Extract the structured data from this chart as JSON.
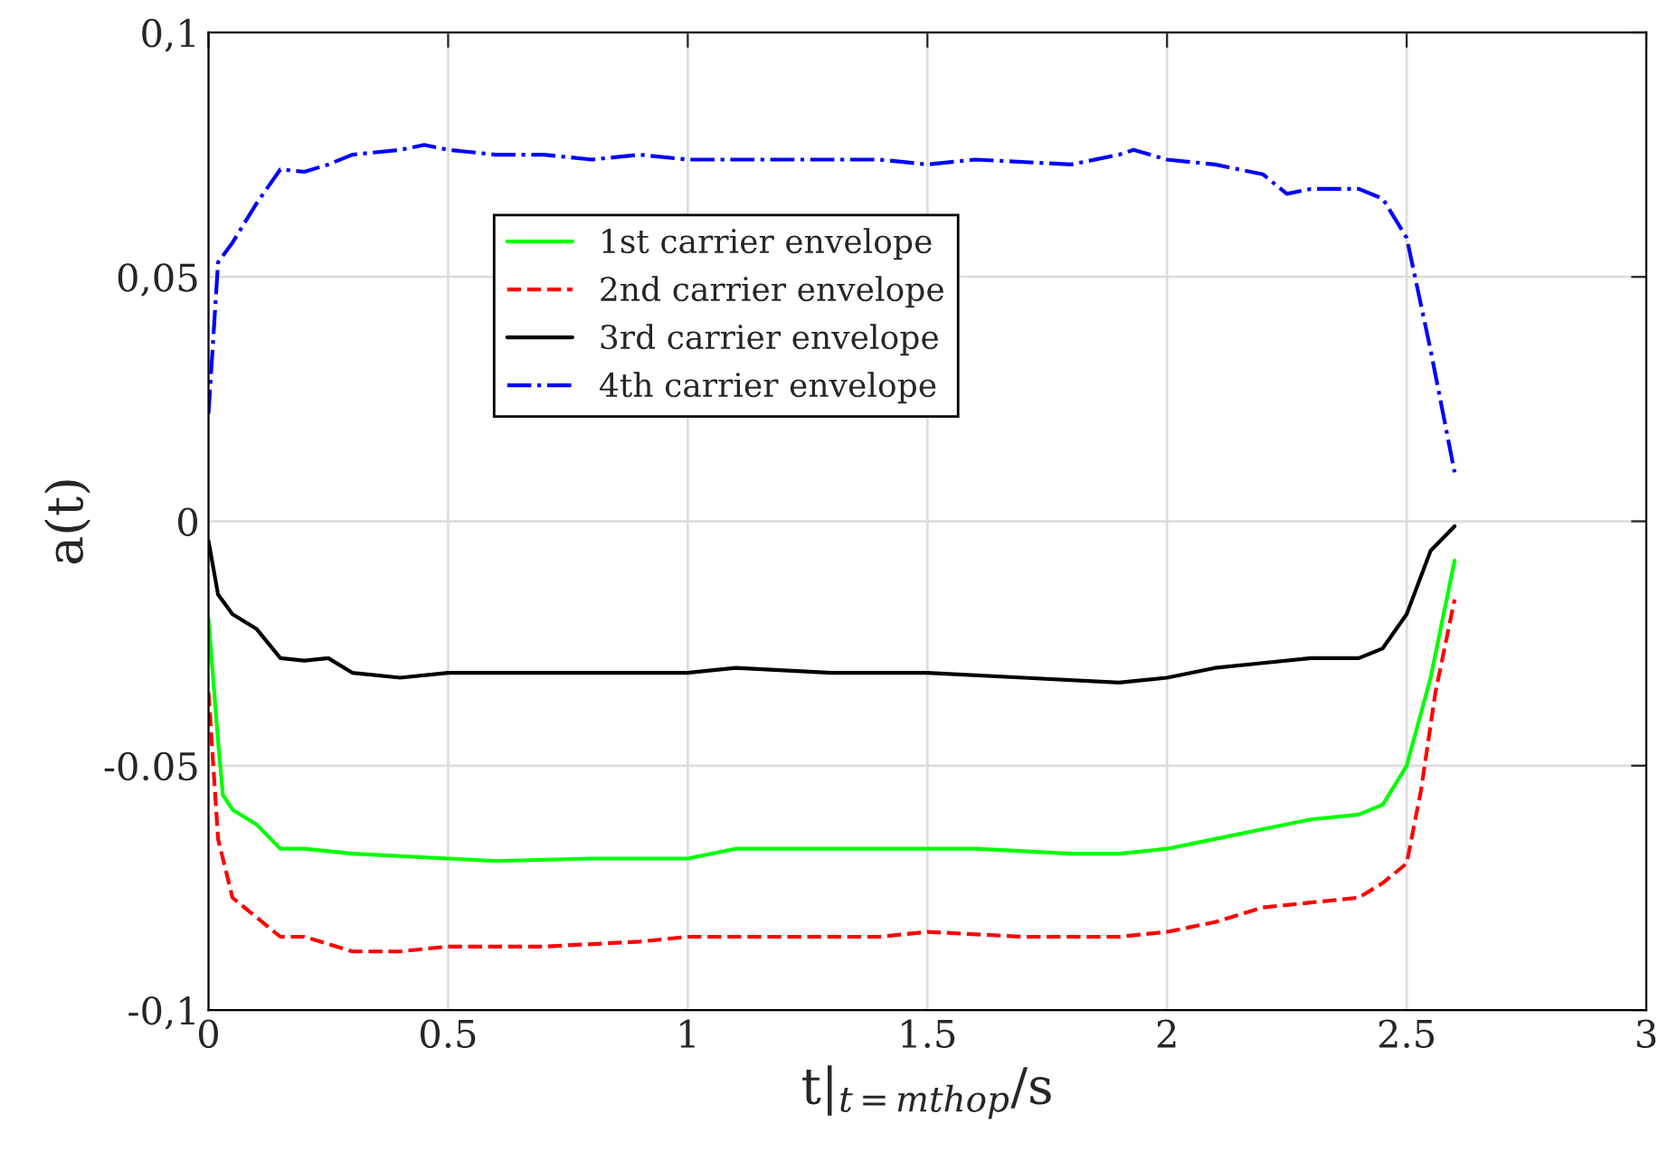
{
  "chart_data": {
    "type": "line",
    "xlabel": "t|$_{t=mthop}$/s",
    "ylabel": "a(t)",
    "xlim": [
      0,
      3
    ],
    "xticks": [
      0,
      0.5,
      1,
      1.5,
      2,
      2.5,
      3
    ],
    "ylim": [
      -0.1,
      0.1
    ],
    "yticks": [
      {
        "value": -0.1,
        "label": "-0,1"
      },
      {
        "value": -0.05,
        "label": "-0.05"
      },
      0,
      {
        "value": 0.05,
        "label": "0,05"
      },
      {
        "value": 0.1,
        "label": "0,1"
      }
    ],
    "grid": true,
    "legend": "top",
    "marker": "none",
    "series": [
      {
        "name": "1st carrier envelope",
        "color": "#00ff00",
        "line_style": "solid",
        "x": [
          0,
          0.02,
          0.03,
          0.05,
          0.1,
          0.15,
          0.2,
          0.3,
          0.5,
          0.6,
          0.8,
          1.0,
          1.1,
          1.3,
          1.5,
          1.6,
          1.8,
          1.9,
          2.0,
          2.1,
          2.2,
          2.3,
          2.4,
          2.45,
          2.5,
          2.55,
          2.6
        ],
        "values": [
          -0.02,
          -0.045,
          -0.056,
          -0.059,
          -0.062,
          -0.067,
          -0.067,
          -0.068,
          -0.069,
          -0.0695,
          -0.069,
          -0.069,
          -0.067,
          -0.067,
          -0.067,
          -0.067,
          -0.068,
          -0.068,
          -0.067,
          -0.065,
          -0.063,
          -0.061,
          -0.06,
          -0.058,
          -0.05,
          -0.032,
          -0.008
        ]
      },
      {
        "name": "2nd carrier envelope",
        "color": "#ff0000",
        "line_style": "dashed",
        "x": [
          0,
          0.02,
          0.05,
          0.1,
          0.15,
          0.2,
          0.3,
          0.4,
          0.5,
          0.7,
          0.9,
          1.0,
          1.2,
          1.4,
          1.5,
          1.7,
          1.9,
          2.0,
          2.1,
          2.2,
          2.3,
          2.4,
          2.45,
          2.5,
          2.53,
          2.56,
          2.6
        ],
        "values": [
          -0.035,
          -0.065,
          -0.077,
          -0.081,
          -0.085,
          -0.085,
          -0.088,
          -0.088,
          -0.087,
          -0.087,
          -0.086,
          -0.085,
          -0.085,
          -0.085,
          -0.084,
          -0.085,
          -0.085,
          -0.084,
          -0.082,
          -0.079,
          -0.078,
          -0.077,
          -0.074,
          -0.07,
          -0.055,
          -0.035,
          -0.016
        ]
      },
      {
        "name": "3rd carrier envelope",
        "color": "#000000",
        "line_style": "solid",
        "x": [
          0,
          0.02,
          0.05,
          0.1,
          0.15,
          0.2,
          0.25,
          0.3,
          0.4,
          0.5,
          0.7,
          0.9,
          1.0,
          1.1,
          1.3,
          1.5,
          1.7,
          1.9,
          2.0,
          2.1,
          2.2,
          2.3,
          2.4,
          2.45,
          2.5,
          2.55,
          2.6
        ],
        "values": [
          -0.004,
          -0.015,
          -0.019,
          -0.022,
          -0.028,
          -0.0285,
          -0.028,
          -0.031,
          -0.032,
          -0.031,
          -0.031,
          -0.031,
          -0.031,
          -0.03,
          -0.031,
          -0.031,
          -0.032,
          -0.033,
          -0.032,
          -0.03,
          -0.029,
          -0.028,
          -0.028,
          -0.026,
          -0.019,
          -0.006,
          -0.001
        ]
      },
      {
        "name": "4th carrier envelope",
        "color": "#0000ff",
        "line_style": "dashdot",
        "x": [
          0,
          0.02,
          0.05,
          0.1,
          0.15,
          0.2,
          0.25,
          0.3,
          0.4,
          0.45,
          0.5,
          0.6,
          0.7,
          0.8,
          0.9,
          1.0,
          1.2,
          1.4,
          1.5,
          1.6,
          1.8,
          1.9,
          1.93,
          2.0,
          2.1,
          2.2,
          2.25,
          2.3,
          2.4,
          2.45,
          2.5,
          2.55,
          2.6
        ],
        "values": [
          0.022,
          0.053,
          0.057,
          0.065,
          0.072,
          0.0715,
          0.073,
          0.075,
          0.076,
          0.077,
          0.076,
          0.075,
          0.075,
          0.074,
          0.075,
          0.074,
          0.074,
          0.074,
          0.073,
          0.074,
          0.073,
          0.075,
          0.076,
          0.074,
          0.073,
          0.071,
          0.067,
          0.068,
          0.068,
          0.066,
          0.058,
          0.035,
          0.01
        ]
      }
    ]
  }
}
